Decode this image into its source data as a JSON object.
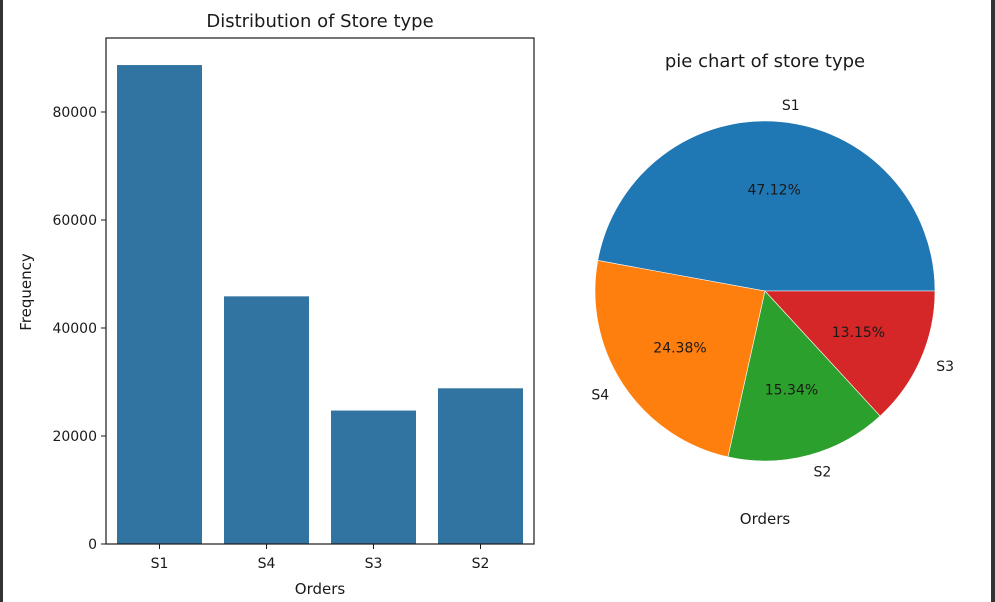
{
  "chart_data": [
    {
      "type": "bar",
      "title": "Distribution of Store type",
      "xlabel": "Orders",
      "ylabel": "Frequency",
      "categories": [
        "S1",
        "S4",
        "S3",
        "S2"
      ],
      "values": [
        88750,
        45920,
        24770,
        28890
      ],
      "ylim": [
        0,
        93000
      ],
      "yticks": [
        0,
        20000,
        40000,
        60000,
        80000
      ],
      "ytick_labels": [
        "0",
        "20000",
        "40000",
        "60000",
        "80000"
      ],
      "color": "#3274a1",
      "grid": false
    },
    {
      "type": "pie",
      "title": "pie chart of store type",
      "xlabel": "Orders",
      "labels": [
        "S1",
        "S4",
        "S2",
        "S3"
      ],
      "values": [
        47.12,
        24.38,
        15.34,
        13.15
      ],
      "value_labels": [
        "47.12%",
        "24.38%",
        "15.34%",
        "13.15%"
      ],
      "colors": [
        "#1f77b4",
        "#ff7f0e",
        "#2ca02c",
        "#d62728"
      ],
      "start_angle": 0,
      "direction": "counterclockwise"
    }
  ]
}
